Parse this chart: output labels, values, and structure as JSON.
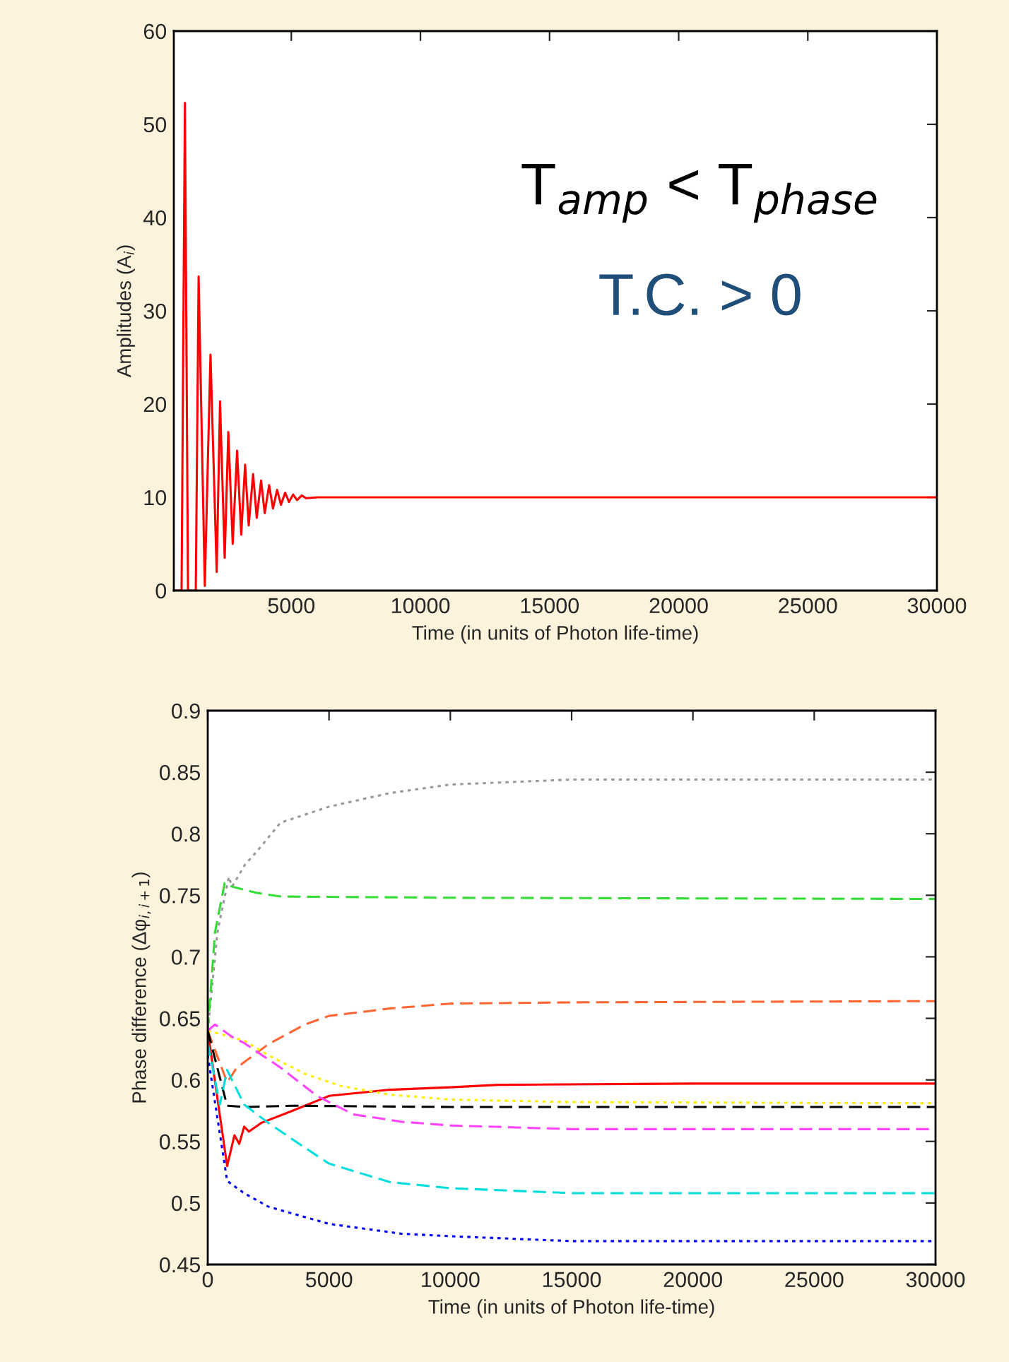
{
  "chart_data": [
    {
      "type": "line",
      "xlabel": "Time (in units of Photon life-time)",
      "ylabel": "Amplitudes (A$_{i}$)",
      "xlim": [
        450,
        30000
      ],
      "ylim": [
        0,
        60
      ],
      "xticks": [
        5000,
        10000,
        15000,
        20000,
        25000,
        30000
      ],
      "yticks": [
        0,
        10,
        20,
        30,
        40,
        50,
        60
      ],
      "grid": false,
      "legend": false,
      "annotations": [
        "T$_{amp}$ < T$_{phase}$",
        "T.C. > 0"
      ],
      "series": [
        {
          "color": "#ff0000",
          "line_style": "solid",
          "x": [
            450,
            750,
            880,
            1000,
            1100,
            1300,
            1410,
            1650,
            1870,
            2110,
            2240,
            2420,
            2560,
            2730,
            2900,
            3060,
            3210,
            3350,
            3520,
            3660,
            3830,
            3970,
            4140,
            4290,
            4450,
            4600,
            4760,
            4910,
            5070,
            5220,
            5400,
            5580,
            6000,
            10000,
            20000,
            30000
          ],
          "values": [
            0,
            0,
            52.3,
            0,
            0,
            0,
            33.7,
            0.5,
            25.3,
            2,
            20.3,
            3.5,
            17,
            5,
            15,
            6,
            13.5,
            7,
            12.5,
            7.8,
            11.8,
            8.3,
            11.3,
            8.8,
            10.8,
            9.2,
            10.5,
            9.5,
            10.3,
            9.7,
            10.2,
            9.9,
            10,
            10,
            10,
            10
          ]
        }
      ]
    },
    {
      "type": "line",
      "xlabel": "Time (in units of Photon life-time)",
      "ylabel": "Phase difference (Δφ$_{i,i+1}$)",
      "xlim": [
        0,
        30000
      ],
      "ylim": [
        0.45,
        0.9
      ],
      "xticks": [
        0,
        5000,
        10000,
        15000,
        20000,
        25000,
        30000
      ],
      "yticks": [
        0.45,
        0.5,
        0.55,
        0.6,
        0.65,
        0.7,
        0.75,
        0.8,
        0.85,
        0.9
      ],
      "grid": false,
      "legend": false,
      "series": [
        {
          "color": "#999999",
          "line_style": "dotted",
          "x": [
            0,
            400,
            870,
            1000,
            1540,
            2000,
            3000,
            5000,
            7500,
            10000,
            15000,
            30000
          ],
          "values": [
            0.64,
            0.72,
            0.765,
            0.757,
            0.775,
            0.785,
            0.809,
            0.822,
            0.833,
            0.84,
            0.844,
            0.844
          ]
        },
        {
          "color": "#33dd33",
          "line_style": "dashed",
          "x": [
            0,
            300,
            700,
            1000,
            2000,
            3000,
            10000,
            30000
          ],
          "values": [
            0.64,
            0.72,
            0.76,
            0.757,
            0.752,
            0.749,
            0.748,
            0.747
          ]
        },
        {
          "color": "#ff6633",
          "line_style": "dashed",
          "x": [
            0,
            800,
            1200,
            2500,
            4000,
            5000,
            7500,
            10000,
            15000,
            30000
          ],
          "values": [
            0.64,
            0.598,
            0.61,
            0.629,
            0.645,
            0.652,
            0.658,
            0.662,
            0.663,
            0.664
          ]
        },
        {
          "color": "#ff0000",
          "line_style": "solid",
          "x": [
            0,
            800,
            1100,
            1300,
            1500,
            1700,
            2200,
            3500,
            5000,
            7500,
            10000,
            12000,
            20000,
            30000
          ],
          "values": [
            0.64,
            0.53,
            0.555,
            0.548,
            0.562,
            0.558,
            0.565,
            0.575,
            0.587,
            0.592,
            0.594,
            0.596,
            0.597,
            0.597
          ]
        },
        {
          "color": "#ffee00",
          "line_style": "dotted",
          "x": [
            0,
            1500,
            2500,
            4000,
            5500,
            7500,
            10000,
            15000,
            30000
          ],
          "values": [
            0.64,
            0.632,
            0.62,
            0.605,
            0.595,
            0.588,
            0.584,
            0.582,
            0.581
          ]
        },
        {
          "color": "#000000",
          "line_style": "dashed",
          "x": [
            0,
            800,
            1500,
            3500,
            10000,
            30000
          ],
          "values": [
            0.64,
            0.579,
            0.578,
            0.579,
            0.578,
            0.578
          ]
        },
        {
          "color": "#ff44ff",
          "line_style": "dashed",
          "x": [
            0,
            300,
            1000,
            1500,
            3000,
            4500,
            6000,
            8000,
            10000,
            15000,
            30000
          ],
          "values": [
            0.64,
            0.645,
            0.635,
            0.63,
            0.61,
            0.587,
            0.572,
            0.566,
            0.563,
            0.56,
            0.56
          ]
        },
        {
          "color": "#00dddd",
          "line_style": "dashed",
          "x": [
            0,
            500,
            800,
            1500,
            2500,
            4000,
            5000,
            7500,
            10000,
            15000,
            30000
          ],
          "values": [
            0.63,
            0.58,
            0.608,
            0.58,
            0.565,
            0.545,
            0.532,
            0.517,
            0.512,
            0.508,
            0.508
          ]
        },
        {
          "color": "#0000ff",
          "line_style": "dotted",
          "x": [
            0,
            800,
            1000,
            1500,
            2500,
            5000,
            8000,
            10000,
            15000,
            30000
          ],
          "values": [
            0.62,
            0.518,
            0.515,
            0.508,
            0.497,
            0.483,
            0.475,
            0.473,
            0.469,
            0.469
          ]
        }
      ]
    }
  ]
}
